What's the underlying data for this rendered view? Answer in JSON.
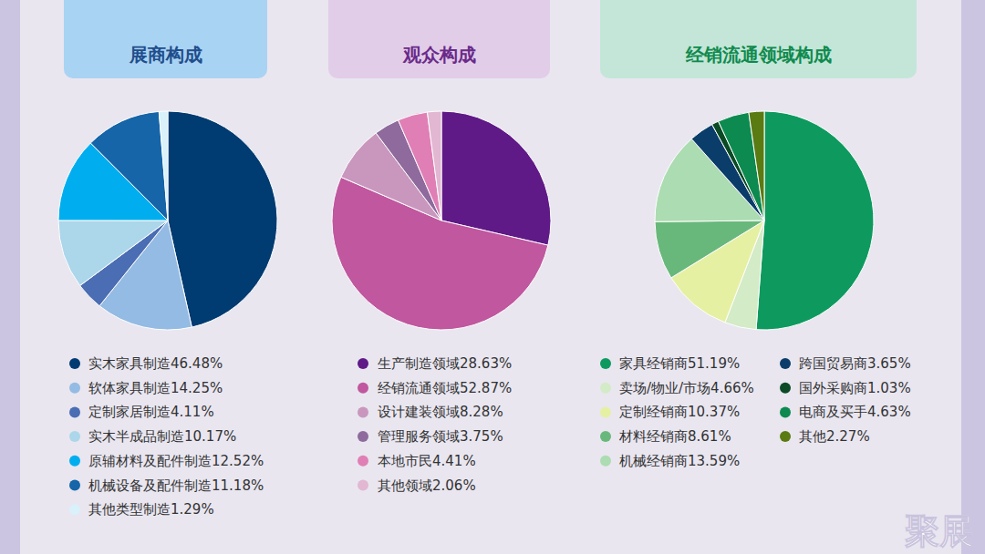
{
  "chart_data": [
    {
      "type": "pie",
      "title": "展商构成",
      "categories": [
        "实木家具制造",
        "软体家具制造",
        "定制家居制造",
        "实木半成品制造",
        "原辅材料及配件制造",
        "机械设备及配件制造",
        "其他类型制造"
      ],
      "values": [
        46.48,
        14.25,
        4.11,
        10.17,
        12.52,
        11.18,
        1.29
      ],
      "value_labels": [
        "46.48%",
        "14.25%",
        "4.11%",
        "10.17%",
        "12.52%",
        "11.18%",
        "1.29%"
      ],
      "colors": [
        "#003b71",
        "#94bbe3",
        "#4a6db3",
        "#acd6ea",
        "#00aeef",
        "#1565a8",
        "#d8f1fb"
      ],
      "legend": "bottom"
    },
    {
      "type": "pie",
      "title": "观众构成",
      "categories": [
        "生产制造领域",
        "经销流通领域",
        "设计建装领域",
        "管理服务领域",
        "本地市民",
        "其他领域"
      ],
      "values": [
        28.63,
        52.87,
        8.28,
        3.75,
        4.41,
        2.06
      ],
      "value_labels": [
        "28.63%",
        "52.87%",
        "8.28%",
        "3.75%",
        "4.41%",
        "2.06%"
      ],
      "colors": [
        "#5f1a87",
        "#c0579f",
        "#c997bd",
        "#8e6a9d",
        "#e07fb5",
        "#e2b7d2"
      ],
      "legend": "bottom"
    },
    {
      "type": "pie",
      "title": "经销流通领域构成",
      "categories": [
        "家具经销商",
        "卖场/物业/市场",
        "定制经销商",
        "材料经销商",
        "机械经销商",
        "跨国贸易商",
        "国外采购商",
        "电商及买手",
        "其他"
      ],
      "values": [
        51.19,
        4.66,
        10.37,
        8.61,
        13.59,
        3.65,
        1.03,
        4.63,
        2.27
      ],
      "value_labels": [
        "51.19%",
        "4.66%",
        "10.37%",
        "8.61%",
        "13.59%",
        "3.65%",
        "1.03%",
        "4.63%",
        "2.27%"
      ],
      "colors": [
        "#0e9a5f",
        "#d3ebc6",
        "#e6f0a3",
        "#69b87b",
        "#acdcb1",
        "#0b3d6b",
        "#0a4a24",
        "#0d8a4f",
        "#5a7a12"
      ],
      "legend": "bottom"
    }
  ],
  "watermark": "聚展"
}
